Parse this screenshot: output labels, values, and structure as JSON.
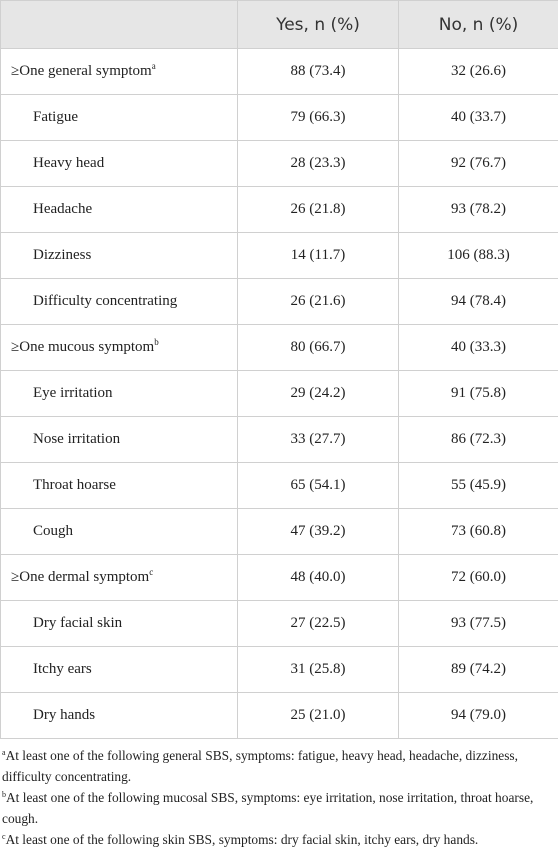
{
  "table": {
    "header": [
      "Yes, n (%)",
      "No, n (%)"
    ],
    "groups": [
      {
        "label": "≥One general symptom",
        "note": "a",
        "yes": "88 (73.4)",
        "no": "32 (26.6)",
        "items": [
          {
            "label": "Fatigue",
            "yes": "79 (66.3)",
            "no": "40 (33.7)"
          },
          {
            "label": "Heavy head",
            "yes": "28 (23.3)",
            "no": "92 (76.7)"
          },
          {
            "label": "Headache",
            "yes": "26 (21.8)",
            "no": "93 (78.2)"
          },
          {
            "label": "Dizziness",
            "yes": "14 (11.7)",
            "no": "106 (88.3)"
          },
          {
            "label": "Difficulty concentrating",
            "yes": "26 (21.6)",
            "no": "94 (78.4)"
          }
        ]
      },
      {
        "label": "≥One mucous symptom",
        "note": "b",
        "yes": "80 (66.7)",
        "no": "40 (33.3)",
        "items": [
          {
            "label": "Eye irritation",
            "yes": "29 (24.2)",
            "no": "91 (75.8)"
          },
          {
            "label": "Nose irritation",
            "yes": "33 (27.7)",
            "no": "86 (72.3)"
          },
          {
            "label": "Throat hoarse",
            "yes": "65 (54.1)",
            "no": "55 (45.9)"
          },
          {
            "label": "Cough",
            "yes": "47 (39.2)",
            "no": "73 (60.8)"
          }
        ]
      },
      {
        "label": "≥One dermal symptom",
        "note": "c",
        "yes": "48 (40.0)",
        "no": "72 (60.0)",
        "items": [
          {
            "label": "Dry facial skin",
            "yes": "27 (22.5)",
            "no": "93 (77.5)"
          },
          {
            "label": "Itchy ears",
            "yes": "31 (25.8)",
            "no": "89 (74.2)"
          },
          {
            "label": "Dry hands",
            "yes": "25 (21.0)",
            "no": "94 (79.0)"
          }
        ]
      }
    ],
    "footnotes": [
      {
        "mark": "a",
        "text": "At least one of the following general SBS, symptoms: fatigue, heavy head, headache, dizziness, difficulty concentrating."
      },
      {
        "mark": "b",
        "text": "At least one of the following mucosal SBS, symptoms: eye irritation, nose irritation, throat hoarse, cough."
      },
      {
        "mark": "c",
        "text": "At least one of the following skin SBS, symptoms: dry facial skin, itchy ears, dry hands."
      }
    ]
  }
}
